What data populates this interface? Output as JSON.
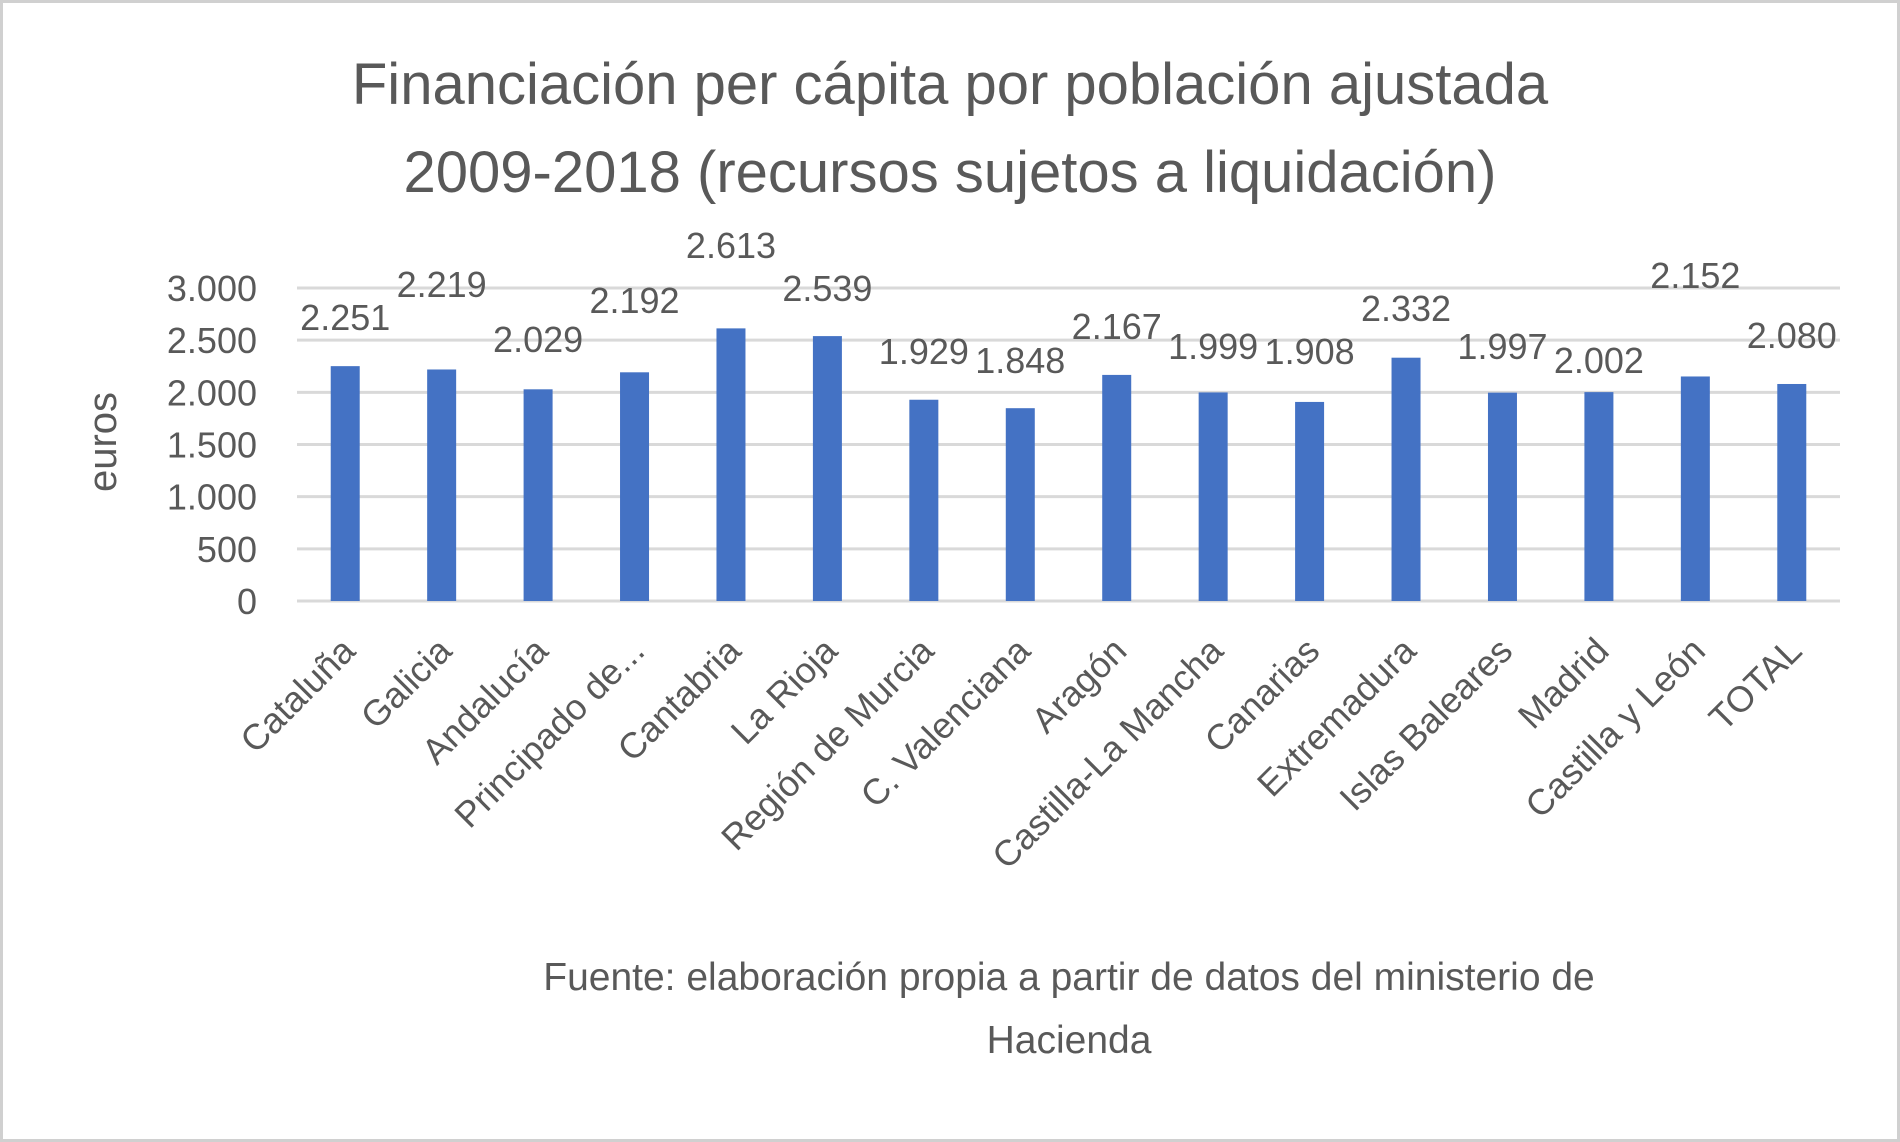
{
  "chart_data": {
    "type": "bar",
    "title_lines": [
      "Financiación per cápita por población ajustada",
      "2009-2018 (recursos sujetos a liquidación)"
    ],
    "xlabel": "",
    "ylabel": "euros",
    "ylim": [
      0,
      3000
    ],
    "yticks": [
      0,
      500,
      1000,
      1500,
      2000,
      2500,
      3000
    ],
    "ytick_labels": [
      "0",
      "500",
      "1.000",
      "1.500",
      "2.000",
      "2.500",
      "3.000"
    ],
    "grid": true,
    "categories": [
      "Cataluña",
      "Galicia",
      "Andalucía",
      "Principado de...",
      "Cantabria",
      "La Rioja",
      "Región de Murcia",
      "C. Valenciana",
      "Aragón",
      "Castilla-La Mancha",
      "Canarias",
      "Extremadura",
      "Islas Baleares",
      "Madrid",
      "Castilla y León",
      "TOTAL"
    ],
    "values": [
      2251,
      2219,
      2029,
      2192,
      2613,
      2539,
      1929,
      1848,
      2167,
      1999,
      1908,
      2332,
      1997,
      2002,
      2152,
      2080
    ],
    "data_labels": [
      "2.251",
      "2.219",
      "2.029",
      "2.192",
      "2.613",
      "2.539",
      "1.929",
      "1.848",
      "2.167",
      "1.999",
      "1.908",
      "2.332",
      "1.997",
      "2.002",
      "2.152",
      "2.080"
    ],
    "bar_color": "#4472C4",
    "grid_color": "#d9d9d9",
    "source_lines": [
      "Fuente: elaboración propia a partir de datos del ministerio de",
      "Hacienda"
    ]
  }
}
